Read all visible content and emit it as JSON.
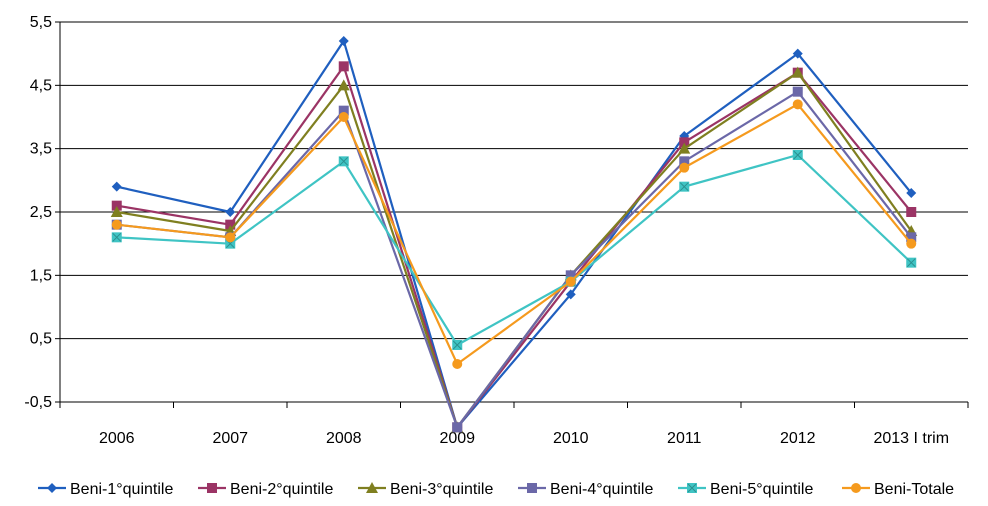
{
  "chart_data": {
    "type": "line",
    "categories": [
      "2006",
      "2007",
      "2008",
      "2009",
      "2010",
      "2011",
      "2012",
      "2013 I trim"
    ],
    "ylim": [
      -0.5,
      5.5
    ],
    "yticks": [
      "-0,5",
      "0,5",
      "1,5",
      "2,5",
      "3,5",
      "4,5",
      "5,5"
    ],
    "ytick_values": [
      -0.5,
      0.5,
      1.5,
      2.5,
      3.5,
      4.5,
      5.5
    ],
    "grid": true,
    "legend_position": "bottom",
    "series": [
      {
        "name": "Beni-1°quintile",
        "color": "#1f5fbf",
        "marker": "diamond",
        "values": [
          2.9,
          2.5,
          5.2,
          -0.9,
          1.2,
          3.7,
          5.0,
          2.8
        ]
      },
      {
        "name": "Beni-2°quintile",
        "color": "#9b3465",
        "marker": "square",
        "values": [
          2.6,
          2.3,
          4.8,
          -0.9,
          1.4,
          3.6,
          4.7,
          2.5
        ]
      },
      {
        "name": "Beni-3°quintile",
        "color": "#7f7f20",
        "marker": "triangle",
        "values": [
          2.5,
          2.2,
          4.5,
          -0.9,
          1.5,
          3.5,
          4.7,
          2.2
        ]
      },
      {
        "name": "Beni-4°quintile",
        "color": "#6b68a8",
        "marker": "square",
        "values": [
          2.3,
          2.1,
          4.1,
          -0.9,
          1.5,
          3.3,
          4.4,
          2.1
        ]
      },
      {
        "name": "Beni-5°quintile",
        "color": "#3fc4c4",
        "marker": "x-square",
        "values": [
          2.1,
          2.0,
          3.3,
          0.4,
          1.4,
          2.9,
          3.4,
          1.7
        ]
      },
      {
        "name": "Beni-Totale",
        "color": "#f59a1e",
        "marker": "circle",
        "values": [
          2.3,
          2.1,
          4.0,
          0.1,
          1.4,
          3.2,
          4.2,
          2.0
        ]
      }
    ]
  }
}
